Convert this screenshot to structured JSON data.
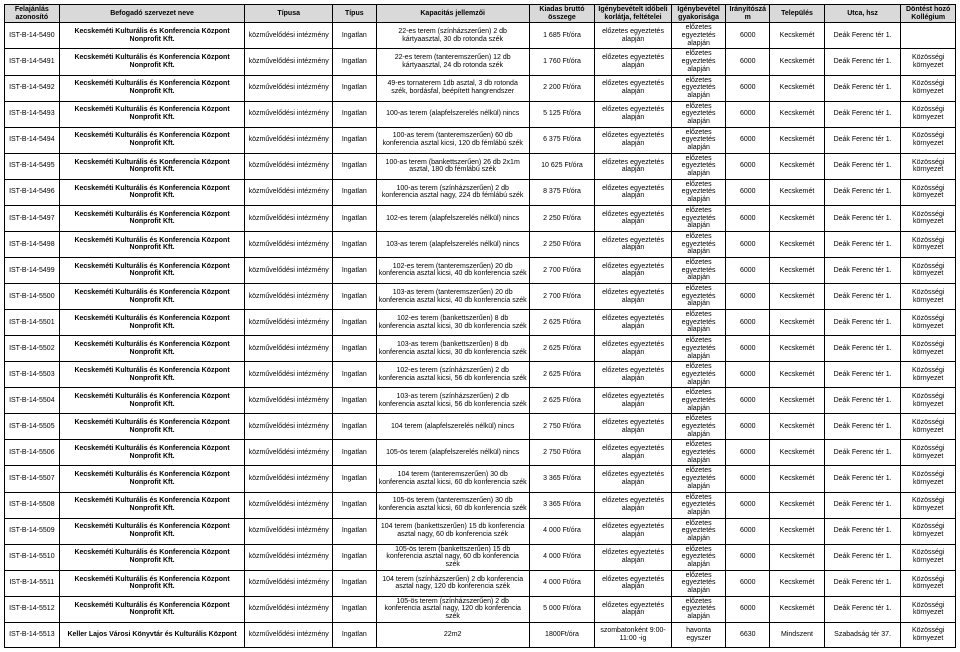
{
  "headers": [
    "Felajánlás azonosító",
    "Befogadó szervezet neve",
    "Típusa",
    "Típus",
    "Kapacitás jellemzői",
    "Kiadas bruttó összege",
    "Igénybevételt időbeli korlátja, feltételei",
    "Igénybevétel gyakorisága",
    "Irányítószám",
    "Település",
    "Utca, hsz",
    "Döntést hozó Kollégium"
  ],
  "rows": [
    {
      "id": "IST-B-14-5490",
      "org": "Kecskeméti Kulturális és Konferencia Központ Nonprofit Kft.",
      "typ": "közművelődési intézmény",
      "typ2": "Ingatlan",
      "kap": "22-es terem (színházszerűen) 2 db kártyaasztal, 30 db rotonda szék",
      "price": "1 685 Ft/óra",
      "lim": "előzetes egyeztetés alapján",
      "freq": "előzetes egyeztetés alapján",
      "zip": "6000",
      "city": "Kecskemét",
      "addr": "Deák Ferenc tér 1.",
      "koll": ""
    },
    {
      "id": "IST-B-14-5491",
      "org": "Kecskeméti Kulturális és Konferencia Központ Nonprofit Kft.",
      "typ": "közművelődési intézmény",
      "typ2": "Ingatlan",
      "kap": "22-es terem (tanteremszerűen) 12 db kártyaasztal, 24 db rotonda szék",
      "price": "1 760 Ft/óra",
      "lim": "előzetes egyeztetés alapján",
      "freq": "előzetes egyeztetés alapján",
      "zip": "6000",
      "city": "Kecskemét",
      "addr": "Deák Ferenc tér 1.",
      "koll": "Közösségi környezet"
    },
    {
      "id": "IST-B-14-5492",
      "org": "Kecskeméti Kulturális és Konferencia Központ Nonprofit Kft.",
      "typ": "közművelődési intézmény",
      "typ2": "Ingatlan",
      "kap": "49-es tornaterem 1db asztal, 3 db rotonda szék, bordásfal, beépített hangrendszer",
      "price": "2 200 Ft/óra",
      "lim": "előzetes egyeztetés alapján",
      "freq": "előzetes egyeztetés alapján",
      "zip": "6000",
      "city": "Kecskemét",
      "addr": "Deák Ferenc tér 1.",
      "koll": "Közösségi környezet"
    },
    {
      "id": "IST-B-14-5493",
      "org": "Kecskeméti Kulturális és Konferencia Központ Nonprofit Kft.",
      "typ": "közművelődési intézmény",
      "typ2": "Ingatlan",
      "kap": "100-as terem (alapfelszerelés nélkül) nincs",
      "price": "5 125 Ft/óra",
      "lim": "előzetes egyeztetés alapján",
      "freq": "előzetes egyeztetés alapján",
      "zip": "6000",
      "city": "Kecskemét",
      "addr": "Deák Ferenc tér 1.",
      "koll": "Közösségi környezet"
    },
    {
      "id": "IST-B-14-5494",
      "org": "Kecskeméti Kulturális és Konferencia Központ Nonprofit Kft.",
      "typ": "közművelődési intézmény",
      "typ2": "Ingatlan",
      "kap": "100-as terem (tanteremszerűen) 60 db konferencia asztal kicsi, 120 db fémlábú szék",
      "price": "6 375 Ft/óra",
      "lim": "előzetes egyeztetés alapján",
      "freq": "előzetes egyeztetés alapján",
      "zip": "6000",
      "city": "Kecskemét",
      "addr": "Deák Ferenc tér 1.",
      "koll": "Közösségi környezet"
    },
    {
      "id": "IST-B-14-5495",
      "org": "Kecskeméti Kulturális és Konferencia Központ Nonprofit Kft.",
      "typ": "közművelődési intézmény",
      "typ2": "Ingatlan",
      "kap": "100-as terem (bankettszerűen) 26 db 2x1m asztal, 180 db fémlábú szék",
      "price": "10 625 Ft/óra",
      "lim": "előzetes egyeztetés alapján",
      "freq": "előzetes egyeztetés alapján",
      "zip": "6000",
      "city": "Kecskemét",
      "addr": "Deák Ferenc tér 1.",
      "koll": "Közösségi környezet"
    },
    {
      "id": "IST-B-14-5496",
      "org": "Kecskeméti Kulturális és Konferencia Központ Nonprofit Kft.",
      "typ": "közművelődési intézmény",
      "typ2": "Ingatlan",
      "kap": "100-as terem (színházszerűen) 2 db konferencia asztal nagy, 224 db fémlábú szék",
      "price": "8 375 Ft/óra",
      "lim": "előzetes egyeztetés alapján",
      "freq": "előzetes egyeztetés alapján",
      "zip": "6000",
      "city": "Kecskemét",
      "addr": "Deák Ferenc tér 1.",
      "koll": "Közösségi környezet"
    },
    {
      "id": "IST-B-14-5497",
      "org": "Kecskeméti Kulturális és Konferencia Központ Nonprofit Kft.",
      "typ": "közművelődési intézmény",
      "typ2": "Ingatlan",
      "kap": "102-es terem (alapfelszerelés nélkül) nincs",
      "price": "2 250 Ft/óra",
      "lim": "előzetes egyeztetés alapján",
      "freq": "előzetes egyeztetés alapján",
      "zip": "6000",
      "city": "Kecskemét",
      "addr": "Deák Ferenc tér 1.",
      "koll": "Közösségi környezet"
    },
    {
      "id": "IST-B-14-5498",
      "org": "Kecskeméti Kulturális és Konferencia Központ Nonprofit Kft.",
      "typ": "közművelődési intézmény",
      "typ2": "Ingatlan",
      "kap": "103-as terem (alapfelszerelés nélkül) nincs",
      "price": "2 250 Ft/óra",
      "lim": "előzetes egyeztetés alapján",
      "freq": "előzetes egyeztetés alapján",
      "zip": "6000",
      "city": "Kecskemét",
      "addr": "Deák Ferenc tér 1.",
      "koll": "Közösségi környezet"
    },
    {
      "id": "IST-B-14-5499",
      "org": "Kecskeméti Kulturális és Konferencia Központ Nonprofit Kft.",
      "typ": "közművelődési intézmény",
      "typ2": "Ingatlan",
      "kap": "102-es terem (tanteremszerűen) 20 db konferencia asztal kicsi, 40 db konferencia szék",
      "price": "2 700 Ft/óra",
      "lim": "előzetes egyeztetés alapján",
      "freq": "előzetes egyeztetés alapján",
      "zip": "6000",
      "city": "Kecskemét",
      "addr": "Deák Ferenc tér 1.",
      "koll": "Közösségi környezet"
    },
    {
      "id": "IST-B-14-5500",
      "org": "Kecskeméti Kulturális és Konferencia Központ Nonprofit Kft.",
      "typ": "közművelődési intézmény",
      "typ2": "Ingatlan",
      "kap": "103-as terem (tanteremszerűen) 20 db konferencia asztal kicsi, 40 db konferencia szék",
      "price": "2 700 Ft/óra",
      "lim": "előzetes egyeztetés alapján",
      "freq": "előzetes egyeztetés alapján",
      "zip": "6000",
      "city": "Kecskemét",
      "addr": "Deák Ferenc tér 1.",
      "koll": "Közösségi környezet"
    },
    {
      "id": "IST-B-14-5501",
      "org": "Kecskeméti Kulturális és Konferencia Központ Nonprofit Kft.",
      "typ": "közművelődési intézmény",
      "typ2": "Ingatlan",
      "kap": "102-es terem (bankettszerűen) 8 db konferencia asztal kicsi, 30 db konferencia szék",
      "price": "2 625 Ft/óra",
      "lim": "előzetes egyeztetés alapján",
      "freq": "előzetes egyeztetés alapján",
      "zip": "6000",
      "city": "Kecskemét",
      "addr": "Deák Ferenc tér 1.",
      "koll": "Közösségi környezet"
    },
    {
      "id": "IST-B-14-5502",
      "org": "Kecskeméti Kulturális és Konferencia Központ Nonprofit Kft.",
      "typ": "közművelődési intézmény",
      "typ2": "Ingatlan",
      "kap": "103-as terem (bankettszerűen) 8 db konferencia asztal kicsi, 30 db konferencia szék",
      "price": "2 625 Ft/óra",
      "lim": "előzetes egyeztetés alapján",
      "freq": "előzetes egyeztetés alapján",
      "zip": "6000",
      "city": "Kecskemét",
      "addr": "Deák Ferenc tér 1.",
      "koll": "Közösségi környezet"
    },
    {
      "id": "IST-B-14-5503",
      "org": "Kecskeméti Kulturális és Konferencia Központ Nonprofit Kft.",
      "typ": "közművelődési intézmény",
      "typ2": "Ingatlan",
      "kap": "102-es terem (színházszerűen) 2 db konferencia asztal kicsi, 56 db konferencia szék",
      "price": "2 625 Ft/óra",
      "lim": "előzetes egyeztetés alapján",
      "freq": "előzetes egyeztetés alapján",
      "zip": "6000",
      "city": "Kecskemét",
      "addr": "Deák Ferenc tér 1.",
      "koll": "Közösségi környezet"
    },
    {
      "id": "IST-B-14-5504",
      "org": "Kecskeméti Kulturális és Konferencia Központ Nonprofit Kft.",
      "typ": "közművelődési intézmény",
      "typ2": "Ingatlan",
      "kap": "103-as terem (színházszerűen) 2 db konferencia asztal kicsi, 56 db konferencia szék",
      "price": "2 625 Ft/óra",
      "lim": "előzetes egyeztetés alapján",
      "freq": "előzetes egyeztetés alapján",
      "zip": "6000",
      "city": "Kecskemét",
      "addr": "Deák Ferenc tér 1.",
      "koll": "Közösségi környezet"
    },
    {
      "id": "IST-B-14-5505",
      "org": "Kecskeméti Kulturális és Konferencia Központ Nonprofit Kft.",
      "typ": "közművelődési intézmény",
      "typ2": "Ingatlan",
      "kap": "104 terem (alapfelszerelés nélkül) nincs",
      "price": "2 750 Ft/óra",
      "lim": "előzetes egyeztetés alapján",
      "freq": "előzetes egyeztetés alapján",
      "zip": "6000",
      "city": "Kecskemét",
      "addr": "Deák Ferenc tér 1.",
      "koll": "Közösségi környezet"
    },
    {
      "id": "IST-B-14-5506",
      "org": "Kecskeméti Kulturális és Konferencia Központ Nonprofit Kft.",
      "typ": "közművelődési intézmény",
      "typ2": "Ingatlan",
      "kap": "105-ös terem (alapfelszerelés nélkül) nincs",
      "price": "2 750 Ft/óra",
      "lim": "előzetes egyeztetés alapján",
      "freq": "előzetes egyeztetés alapján",
      "zip": "6000",
      "city": "Kecskemét",
      "addr": "Deák Ferenc tér 1.",
      "koll": "Közösségi környezet"
    },
    {
      "id": "IST-B-14-5507",
      "org": "Kecskeméti Kulturális és Konferencia Központ Nonprofit Kft.",
      "typ": "közművelődési intézmény",
      "typ2": "Ingatlan",
      "kap": "104 terem (tanteremszerűen) 30 db konferencia asztal kicsi, 60 db konferencia szék",
      "price": "3 365 Ft/óra",
      "lim": "előzetes egyeztetés alapján",
      "freq": "előzetes egyeztetés alapján",
      "zip": "6000",
      "city": "Kecskemét",
      "addr": "Deák Ferenc tér 1.",
      "koll": "Közösségi környezet"
    },
    {
      "id": "IST-B-14-5508",
      "org": "Kecskeméti Kulturális és Konferencia Központ Nonprofit Kft.",
      "typ": "közművelődési intézmény",
      "typ2": "Ingatlan",
      "kap": "105-ös terem (tanteremszerűen) 30 db konferencia asztal kicsi, 60 db konferencia szék",
      "price": "3 365 Ft/óra",
      "lim": "előzetes egyeztetés alapján",
      "freq": "előzetes egyeztetés alapján",
      "zip": "6000",
      "city": "Kecskemét",
      "addr": "Deák Ferenc tér 1.",
      "koll": "Közösségi környezet"
    },
    {
      "id": "IST-B-14-5509",
      "org": "Kecskeméti Kulturális és Konferencia Központ Nonprofit Kft.",
      "typ": "közművelődési intézmény",
      "typ2": "Ingatlan",
      "kap": "104 terem (bankettszerűen) 15 db konferencia asztal nagy, 60 db konferencia szék",
      "price": "4 000 Ft/óra",
      "lim": "előzetes egyeztetés alapján",
      "freq": "előzetes egyeztetés alapján",
      "zip": "6000",
      "city": "Kecskemét",
      "addr": "Deák Ferenc tér 1.",
      "koll": "Közösségi környezet"
    },
    {
      "id": "IST-B-14-5510",
      "org": "Kecskeméti Kulturális és Konferencia Központ Nonprofit Kft.",
      "typ": "közművelődési intézmény",
      "typ2": "Ingatlan",
      "kap": "105-ös terem (bankettszerűen) 15 db konferencia asztal nagy, 60 db konferencia szék",
      "price": "4 000 Ft/óra",
      "lim": "előzetes egyeztetés alapján",
      "freq": "előzetes egyeztetés alapján",
      "zip": "6000",
      "city": "Kecskemét",
      "addr": "Deák Ferenc tér 1.",
      "koll": "Közösségi környezet"
    },
    {
      "id": "IST-B-14-5511",
      "org": "Kecskeméti Kulturális és Konferencia Központ Nonprofit Kft.",
      "typ": "közművelődési intézmény",
      "typ2": "Ingatlan",
      "kap": "104 terem (színházszerűen) 2 db konferencia asztal nagy, 120 db konferencia szék",
      "price": "4 000 Ft/óra",
      "lim": "előzetes egyeztetés alapján",
      "freq": "előzetes egyeztetés alapján",
      "zip": "6000",
      "city": "Kecskemét",
      "addr": "Deák Ferenc tér 1.",
      "koll": "Közösségi környezet"
    },
    {
      "id": "IST-B-14-5512",
      "org": "Kecskeméti Kulturális és Konferencia Központ Nonprofit Kft.",
      "typ": "közművelődési intézmény",
      "typ2": "Ingatlan",
      "kap": "105-ös terem (színházszerűen) 2 db konferencia asztal nagy, 120 db konferencia szék",
      "price": "5 000 Ft/óra",
      "lim": "előzetes egyeztetés alapján",
      "freq": "előzetes egyeztetés alapján",
      "zip": "6000",
      "city": "Kecskemét",
      "addr": "Deák Ferenc tér 1.",
      "koll": "Közösségi környezet"
    },
    {
      "id": "IST-B-14-5513",
      "org": "Keller Lajos Városi Könyvtár és Kulturális Központ",
      "typ": "közművelődési intézmény",
      "typ2": "Ingatlan",
      "kap": "22m2",
      "price": "1800Ft/óra",
      "lim": "szombatonként 9:00-11:00 -ig",
      "freq": "havonta egyszer",
      "zip": "6630",
      "city": "Mindszent",
      "addr": "Szabadság tér 37.",
      "koll": "Közösségi környezet"
    }
  ]
}
